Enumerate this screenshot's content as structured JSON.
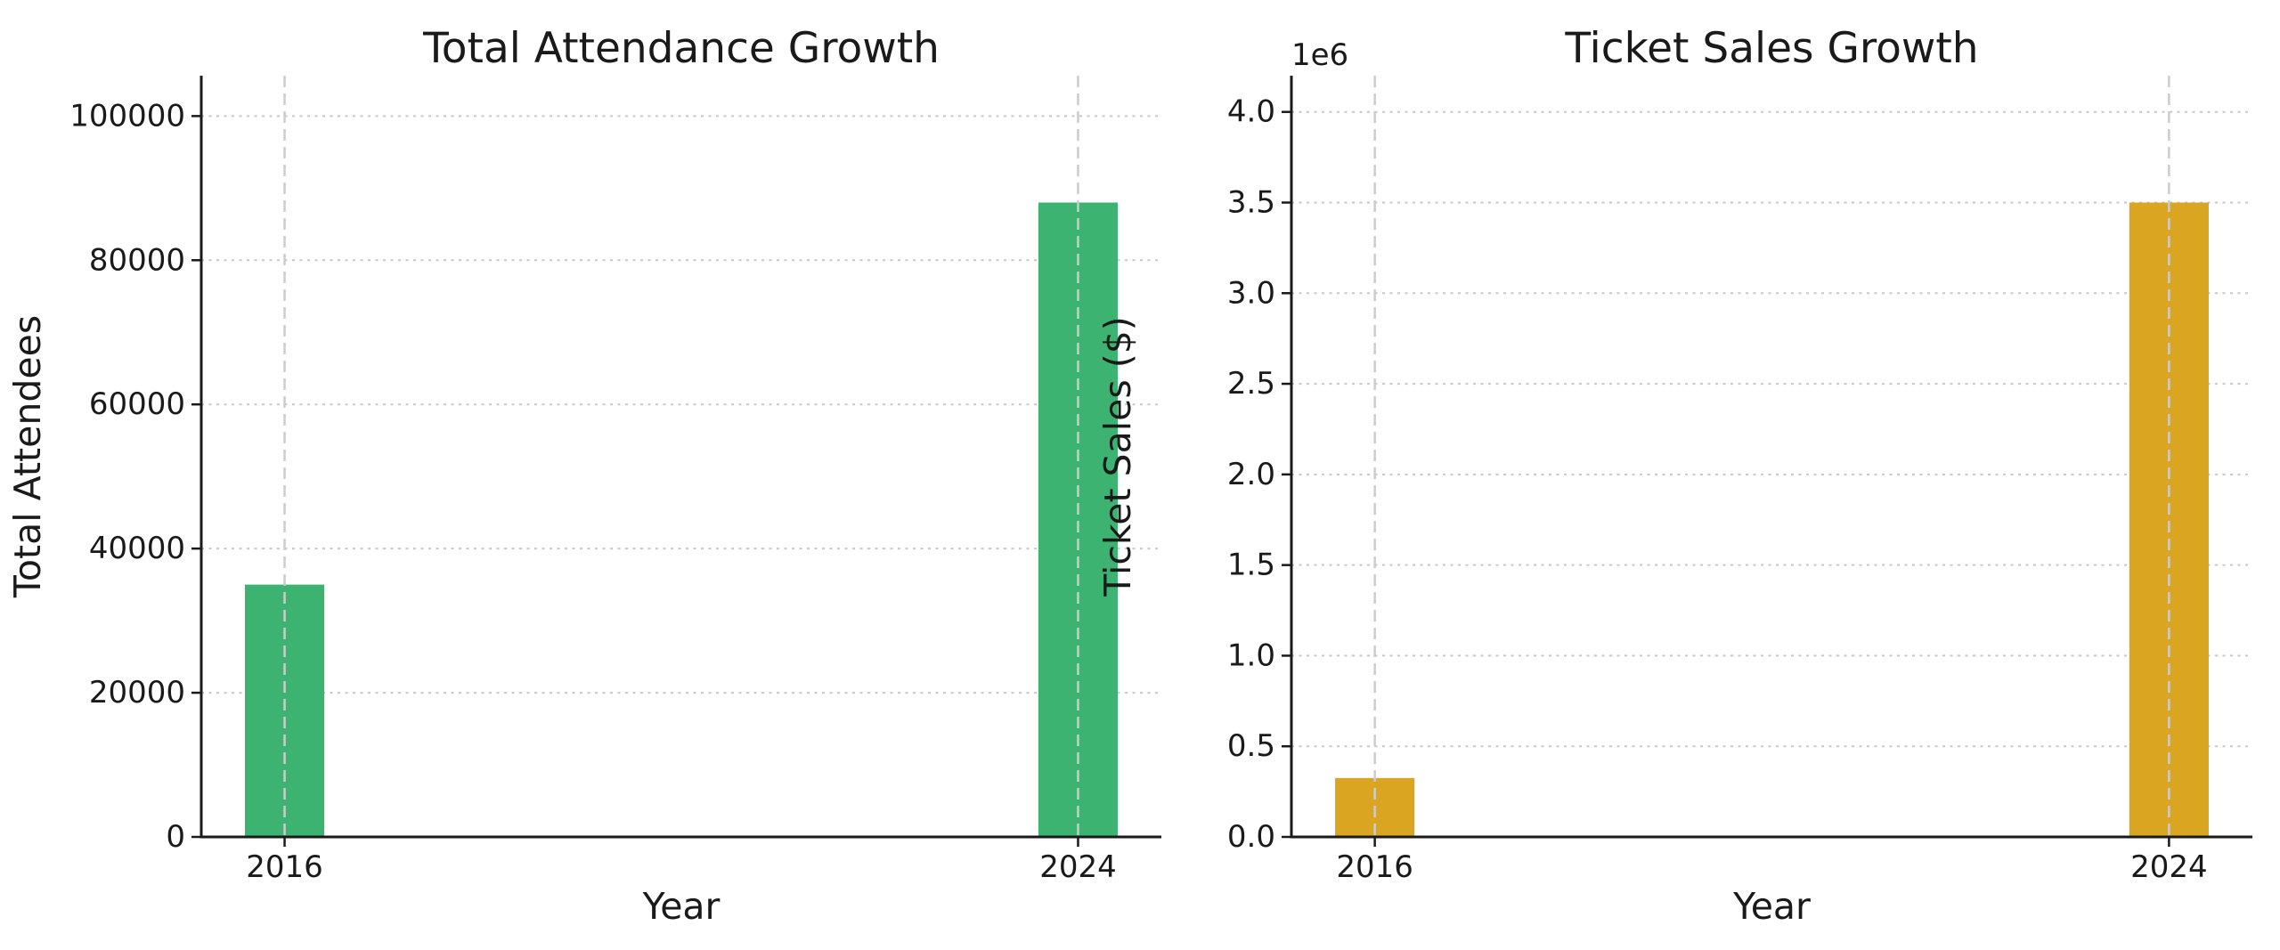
{
  "figure": {
    "background": "#ffffff",
    "text_color": "#1a1a1a",
    "spine_color": "#1a1a1a",
    "h_grid_color": "#c7c7c7",
    "v_grid_color": "#cccccc"
  },
  "chart_data": [
    {
      "type": "bar",
      "title": "Total Attendance Growth",
      "xlabel": "Year",
      "ylabel": "Total Attendees",
      "categories": [
        "2016",
        "2024"
      ],
      "x_values": [
        2016,
        2024
      ],
      "values": [
        35000,
        88000
      ],
      "bar_color": "#3cb371",
      "bar_width_years": 0.8,
      "xlim": [
        2015.16,
        2024.84
      ],
      "ylim": [
        0,
        105600
      ],
      "yticks": [
        0,
        20000,
        40000,
        60000,
        80000,
        100000
      ],
      "ytick_labels": [
        "0",
        "20000",
        "40000",
        "60000",
        "80000",
        "100000"
      ],
      "offset_label": "",
      "grid": "both",
      "legend": "none"
    },
    {
      "type": "bar",
      "title": "Ticket Sales Growth",
      "xlabel": "Year",
      "ylabel": "Ticket Sales ($)",
      "categories": [
        "2016",
        "2024"
      ],
      "x_values": [
        2016,
        2024
      ],
      "values": [
        325000,
        3500000
      ],
      "bar_color": "#daa520",
      "bar_width_years": 0.8,
      "xlim": [
        2015.16,
        2024.84
      ],
      "ylim": [
        0,
        4200000
      ],
      "yticks": [
        0,
        500000,
        1000000,
        1500000,
        2000000,
        2500000,
        3000000,
        3500000,
        4000000
      ],
      "ytick_labels": [
        "0.0",
        "0.5",
        "1.0",
        "1.5",
        "2.0",
        "2.5",
        "3.0",
        "3.5",
        "4.0"
      ],
      "offset_label": "1e6",
      "grid": "both",
      "legend": "none"
    }
  ]
}
